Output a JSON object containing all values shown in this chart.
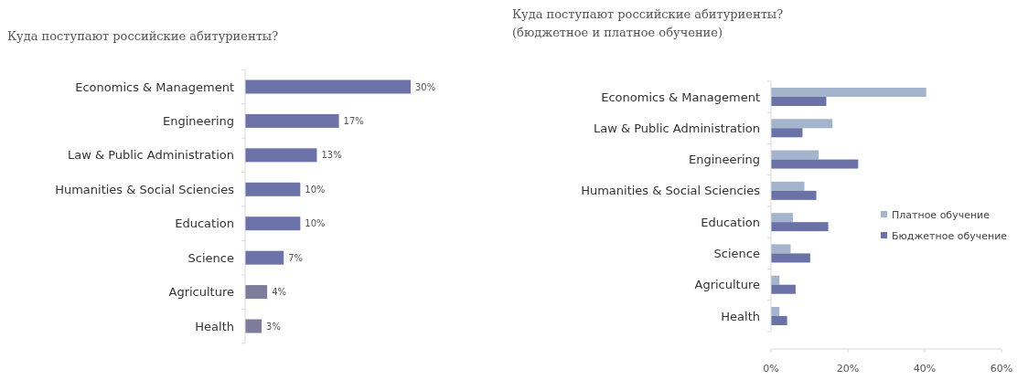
{
  "chart_data": [
    {
      "type": "bar",
      "orientation": "horizontal",
      "title": "Куда поступают российские абитуриенты?",
      "categories": [
        "Economics & Management",
        "Engineering",
        "Law & Public Administration",
        "Humanities & Social Sciencies",
        "Education",
        "Science",
        "Agriculture",
        "Health"
      ],
      "values": [
        30,
        17,
        13,
        10,
        10,
        7,
        4,
        3
      ],
      "value_labels": [
        "30%",
        "17%",
        "13%",
        "10%",
        "10%",
        "7%",
        "4%",
        "3%"
      ],
      "colors": [
        "#6c73a8",
        "#6c73a8",
        "#6c73a8",
        "#6c73a8",
        "#6c73a8",
        "#6c73a8",
        "#7d7d9b",
        "#7d7d9b"
      ],
      "legend": false
    },
    {
      "type": "bar",
      "orientation": "horizontal",
      "title": "Куда поступают российские абитуриенты?",
      "subtitle": "(бюджетное и платное обучение)",
      "categories": [
        "Economics & Management",
        "Law & Public Administration",
        "Engineering",
        "Humanities & Social Sciencies",
        "Education",
        "Science",
        "Agriculture",
        "Health"
      ],
      "series": [
        {
          "name": "Платное обучение",
          "color": "#a3b4cc",
          "values": [
            40.4,
            16,
            12.4,
            8.7,
            5.7,
            5.1,
            2.2,
            2.2
          ]
        },
        {
          "name": "Бюджетное обучение",
          "color": "#6b72a8",
          "values": [
            14.4,
            8.2,
            22.7,
            11.8,
            14.9,
            10.2,
            6.4,
            4.2
          ]
        }
      ],
      "xlim": [
        0,
        60
      ],
      "xticks": [
        {
          "value": 0,
          "label": "0%"
        },
        {
          "value": 20,
          "label": "20%"
        },
        {
          "value": 40,
          "label": "40%"
        },
        {
          "value": 60,
          "label": "60%"
        }
      ],
      "legend": "right"
    }
  ]
}
